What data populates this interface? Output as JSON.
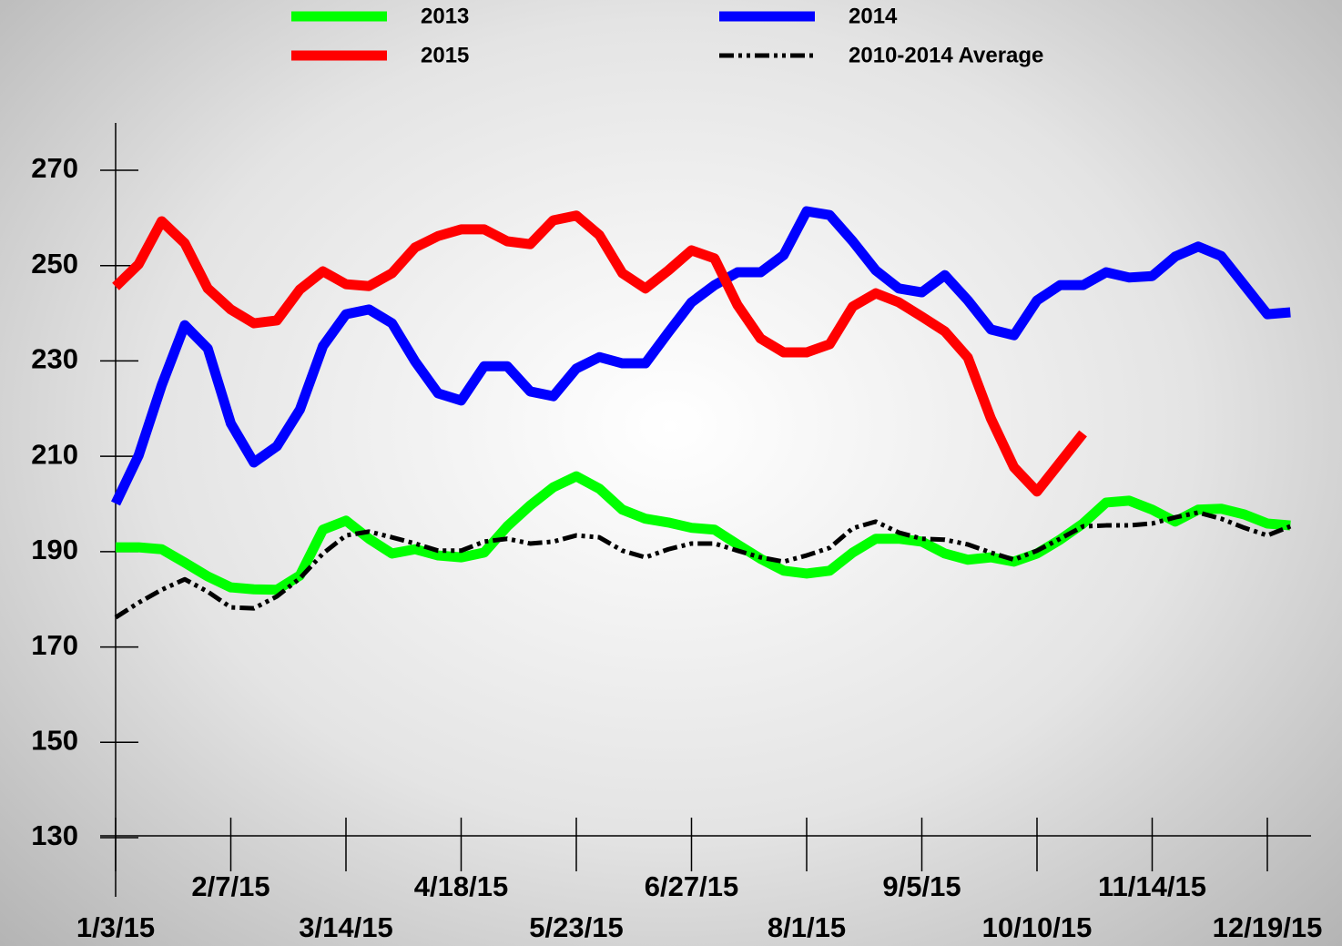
{
  "chart_data": {
    "type": "line",
    "categories": [
      "1/3/15",
      null,
      null,
      null,
      null,
      "2/7/15",
      null,
      null,
      null,
      null,
      "3/14/15",
      null,
      null,
      null,
      null,
      "4/18/15",
      null,
      null,
      null,
      null,
      "5/23/15",
      null,
      null,
      null,
      null,
      "6/27/15",
      null,
      null,
      null,
      null,
      "8/1/15",
      null,
      null,
      null,
      null,
      "9/5/15",
      null,
      null,
      null,
      null,
      "10/10/15",
      null,
      null,
      null,
      null,
      "11/14/15",
      null,
      null,
      null,
      null,
      "12/19/15",
      null
    ],
    "series": [
      {
        "name": "2013",
        "color": "#00ff00",
        "values": [
          190.9,
          190.9,
          190.5,
          187.7,
          184.8,
          182.5,
          182.1,
          182.0,
          185.0,
          194.6,
          196.5,
          192.7,
          189.6,
          190.5,
          189.2,
          188.8,
          189.8,
          195.3,
          199.7,
          203.5,
          205.8,
          203.2,
          198.8,
          196.9,
          196.1,
          195.0,
          194.6,
          191.5,
          188.5,
          186.0,
          185.4,
          186.0,
          189.8,
          192.7,
          192.7,
          192.1,
          189.6,
          188.3,
          188.8,
          187.9,
          189.6,
          192.5,
          195.9,
          200.3,
          200.7,
          198.8,
          196.3,
          198.8,
          199.0,
          197.8,
          195.9,
          195.5
        ]
      },
      {
        "name": "2014",
        "color": "#0000ff",
        "values": [
          200.1,
          210.2,
          224.9,
          237.5,
          232.6,
          216.9,
          208.7,
          212.1,
          219.8,
          233.1,
          239.8,
          240.8,
          237.9,
          229.9,
          223.2,
          221.7,
          228.9,
          228.9,
          223.6,
          222.6,
          228.4,
          230.8,
          229.5,
          229.5,
          236.0,
          242.3,
          245.9,
          248.6,
          248.6,
          252.2,
          261.4,
          260.6,
          255.1,
          249.0,
          245.2,
          244.4,
          248.0,
          242.7,
          236.6,
          235.4,
          242.7,
          245.9,
          245.9,
          248.6,
          247.5,
          247.8,
          251.9,
          254.0,
          252.0,
          245.9,
          239.8,
          240.2
        ]
      },
      {
        "name": "2015",
        "color": "#ff0000",
        "values": [
          245.6,
          250.3,
          259.3,
          254.7,
          245.2,
          240.8,
          237.9,
          238.5,
          245.0,
          248.8,
          246.1,
          245.7,
          248.4,
          253.8,
          256.2,
          257.6,
          257.6,
          255.1,
          254.5,
          259.5,
          260.5,
          256.4,
          248.4,
          245.2,
          249.0,
          253.2,
          251.5,
          241.7,
          234.7,
          231.8,
          231.8,
          233.5,
          241.4,
          244.2,
          242.3,
          239.3,
          236.2,
          230.7,
          217.9,
          207.7,
          202.6,
          208.7,
          214.8,
          null,
          null,
          null,
          null,
          null,
          null,
          null,
          null,
          null
        ]
      },
      {
        "name": "2010-2014 Average",
        "color": "#000000",
        "dash": true,
        "values": [
          176.2,
          179.3,
          182.0,
          184.2,
          181.6,
          178.3,
          178.1,
          180.6,
          184.4,
          189.6,
          193.4,
          194.2,
          193.0,
          191.7,
          190.2,
          190.2,
          192.1,
          192.7,
          191.7,
          192.1,
          193.4,
          193.0,
          190.2,
          188.8,
          190.5,
          191.7,
          191.7,
          190.2,
          188.8,
          187.9,
          189.2,
          190.8,
          194.9,
          196.3,
          194.0,
          192.7,
          192.5,
          191.5,
          189.8,
          188.3,
          190.2,
          192.7,
          195.3,
          195.5,
          195.5,
          195.9,
          197.2,
          198.2,
          196.9,
          195.0,
          193.4,
          195.3
        ]
      }
    ],
    "ylim": [
      130,
      280
    ],
    "yticks": [
      130,
      150,
      170,
      190,
      210,
      230,
      250,
      270
    ],
    "legend": "top"
  }
}
